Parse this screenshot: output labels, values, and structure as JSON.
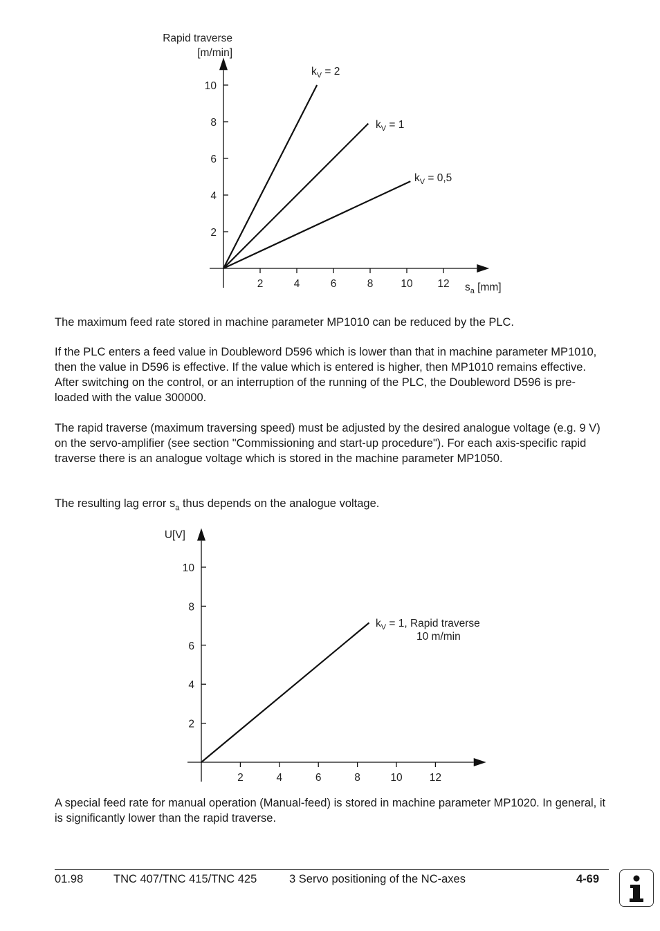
{
  "chart_data": [
    {
      "type": "line",
      "ylabel": [
        "Rapid traverse",
        "[m/min]"
      ],
      "xlabel": {
        "main": "s",
        "sub": "a",
        "unit": " [mm]"
      },
      "xticks": [
        2,
        4,
        6,
        8,
        10,
        12
      ],
      "yticks": [
        2,
        4,
        6,
        8,
        10
      ],
      "xlim": [
        0,
        14.5
      ],
      "ylim": [
        0,
        11.5
      ],
      "series": [
        {
          "name": "kV = 2",
          "label": {
            "k": "k",
            "sub": "V",
            "rest": " = 2"
          },
          "x": [
            0,
            5.1
          ],
          "y": [
            0,
            10
          ]
        },
        {
          "name": "kV = 1",
          "label": {
            "k": "k",
            "sub": "V",
            "rest": " = 1"
          },
          "x": [
            0,
            7.9
          ],
          "y": [
            0,
            7.9
          ]
        },
        {
          "name": "kV = 0,5",
          "label": {
            "k": "k",
            "sub": "V",
            "rest": " = 0,5"
          },
          "x": [
            0,
            10.2
          ],
          "y": [
            0,
            4.75
          ]
        }
      ]
    },
    {
      "type": "line",
      "ylabel": [
        "U[V]"
      ],
      "xlabel": {
        "main": "s",
        "sub": "a",
        "unit": " [mm]"
      },
      "xticks": [
        2,
        4,
        6,
        8,
        10,
        12
      ],
      "yticks": [
        2,
        4,
        6,
        8,
        10
      ],
      "xlim": [
        0,
        14.6
      ],
      "ylim": [
        0,
        12
      ],
      "series": [
        {
          "name": "kV = 1, Rapid traverse 10 m/min",
          "label": {
            "k": "k",
            "sub": "V",
            "rest": " = 1, Rapid traverse",
            "line2": "10 m/min"
          },
          "x": [
            0,
            8.6
          ],
          "y": [
            0,
            7.15
          ]
        }
      ]
    }
  ],
  "text": {
    "p1": "The maximum feed rate stored in machine parameter MP1010 can be reduced by the PLC.",
    "p2": "If the PLC enters a feed value in Doubleword D596 which is lower than that in machine parameter MP1010, then the value in D596 is effective. If the value which is entered is higher, then MP1010 remains effective. After switching on the control, or an interruption of the running of the PLC, the Doubleword D596 is pre-loaded with the value 300000.",
    "p3": "The rapid traverse (maximum traversing speed) must be adjusted by the desired analogue voltage (e.g. 9 V) on the servo-amplifier (see section \"Commissioning and start-up procedure\").  For each axis-specific rapid traverse there is an analogue voltage which is stored in the machine parameter MP1050.",
    "p4_a": "The resulting lag error s",
    "p4_sub": "a",
    "p4_b": " thus depends on the analogue voltage.",
    "p5": "A special feed rate for manual operation (Manual-feed) is stored in machine parameter MP1020. In general, it is significantly lower than the rapid traverse."
  },
  "footer": {
    "date": "01.98",
    "model": "TNC 407/TNC 415/TNC 425",
    "section": "3  Servo positioning of the NC-axes",
    "page": "4-69",
    "icon": "info-icon"
  }
}
